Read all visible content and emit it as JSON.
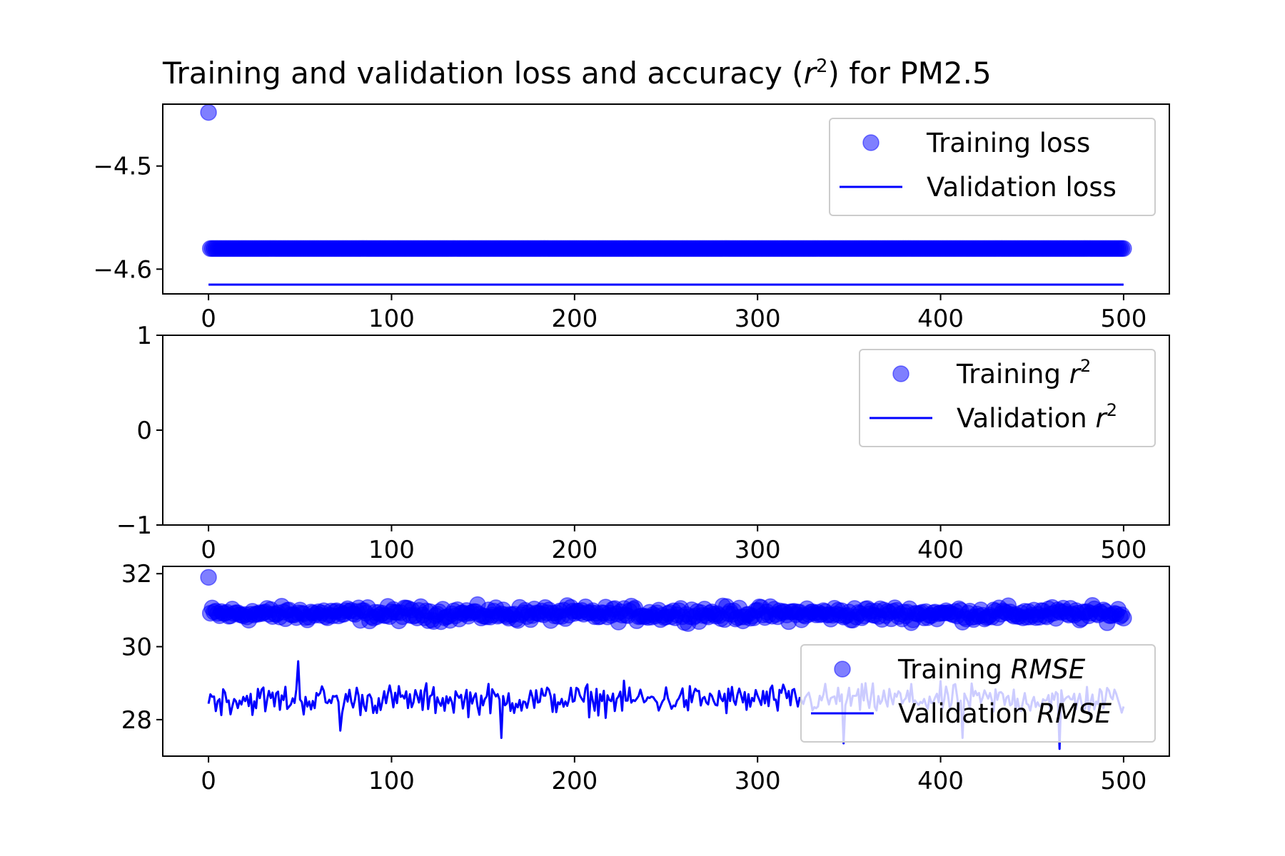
{
  "chart_data": [
    {
      "type": "scatter+line",
      "title_main": "Training and validation loss and accuracy (",
      "title_var": "r",
      "title_sup": "2",
      "title_tail": ") for PM2.5",
      "xlim": [
        -25,
        525
      ],
      "ylim": [
        -4.624,
        -4.44
      ],
      "xticks": [
        0,
        100,
        200,
        300,
        400,
        500
      ],
      "yticks": [
        -4.5,
        -4.6
      ],
      "ytick_labels": [
        "−4.5",
        "−4.6"
      ],
      "legend_position": "top-right",
      "series": [
        {
          "kind": "scatter",
          "label": "Training loss",
          "color": "#0000ff",
          "opacity": 0.5,
          "x_start": 0,
          "x_end": 500,
          "first_value": -4.448,
          "value": -4.58
        },
        {
          "kind": "line",
          "label": "Validation loss",
          "color": "#0000ff",
          "x_start": 0,
          "x_end": 500,
          "value": -4.615
        }
      ]
    },
    {
      "type": "scatter+line",
      "xlim": [
        -25,
        525
      ],
      "ylim": [
        -1,
        1
      ],
      "xticks": [
        0,
        100,
        200,
        300,
        400,
        500
      ],
      "yticks": [
        1,
        0,
        -1
      ],
      "ytick_labels": [
        "1",
        "0",
        "−1"
      ],
      "legend_position": "top-right",
      "series": [
        {
          "kind": "scatter",
          "label": "Training ",
          "label_var": "r",
          "label_sup": "2",
          "color": "#0000ff",
          "opacity": 0.5,
          "values": []
        },
        {
          "kind": "line",
          "label": "Validation ",
          "label_var": "r",
          "label_sup": "2",
          "color": "#0000ff",
          "values": []
        }
      ]
    },
    {
      "type": "scatter+line",
      "xlim": [
        -25,
        525
      ],
      "ylim": [
        27,
        32.2
      ],
      "xticks": [
        0,
        100,
        200,
        300,
        400,
        500
      ],
      "yticks": [
        32,
        30,
        28
      ],
      "ytick_labels": [
        "32",
        "30",
        "28"
      ],
      "legend_position": "lower-right",
      "series": [
        {
          "kind": "scatter",
          "label": "Training ",
          "label_var": "RMSE",
          "color": "#0000ff",
          "opacity": 0.5,
          "x_start": 0,
          "x_end": 500,
          "first_value": 31.9,
          "mean": 30.9,
          "spread": 0.28
        },
        {
          "kind": "line",
          "label": "Validation ",
          "label_var": "RMSE",
          "color": "#0000ff",
          "x_start": 0,
          "x_end": 500,
          "mean": 28.55,
          "spread": 0.6,
          "min": 27.2,
          "max": 29.6
        }
      ]
    }
  ]
}
